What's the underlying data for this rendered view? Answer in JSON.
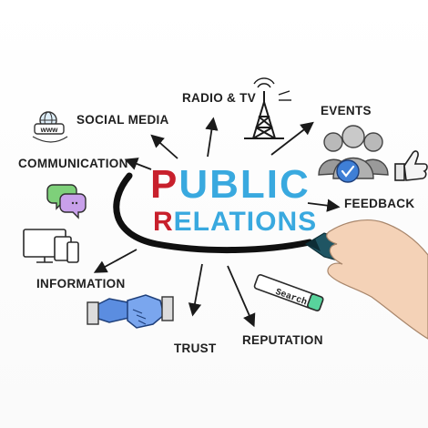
{
  "title": {
    "line1_first": "P",
    "line1_rest": "UBLIC",
    "line2_first": "R",
    "line2_rest": "ELATIONS"
  },
  "nodes": {
    "radio_tv": "RADIO & TV",
    "events": "EVENTS",
    "social_media": "SOCIAL MEDIA",
    "communication": "COMMUNICATION",
    "feedback": "FEEDBACK",
    "information": "INFORMATION",
    "trust": "TRUST",
    "reputation": "REPUTATION"
  },
  "icons": {
    "globe_badge_text": "www",
    "search_bar_text": "Search"
  },
  "colors": {
    "title_initial": "#c8202c",
    "title_rest": "#39a9df",
    "marker_body": "#1f5563",
    "handshake": "#5b8de0",
    "speech_bubble_green": "#7ed07a",
    "speech_bubble_purple": "#c8a0ea",
    "search_tip": "#58d39c",
    "check_circle": "#3f7fd6"
  }
}
